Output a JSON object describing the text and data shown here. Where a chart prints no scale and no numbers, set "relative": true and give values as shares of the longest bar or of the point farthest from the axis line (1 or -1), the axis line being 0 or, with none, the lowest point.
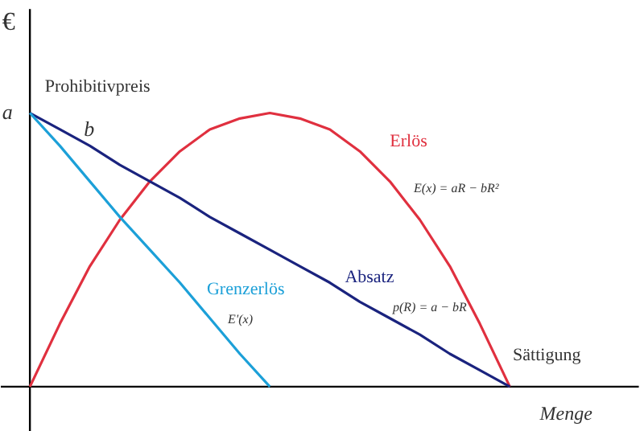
{
  "chart_data": {
    "type": "line",
    "relative": true,
    "ylabel": "€",
    "xlabel": "Menge",
    "grid": false,
    "marker": "none",
    "line_style": "solid",
    "categories": [
      null,
      null,
      null,
      null,
      null,
      null,
      null,
      null,
      null,
      null,
      null,
      null,
      null,
      null,
      null,
      null,
      null
    ],
    "series": [
      {
        "name": "Erlös",
        "color": "#e0303f",
        "values": [
          0,
          0.23,
          0.44,
          0.61,
          0.75,
          0.86,
          0.94,
          0.98,
          1,
          0.98,
          0.94,
          0.86,
          0.75,
          0.61,
          0.44,
          0.23,
          0
        ]
      },
      {
        "name": "Absatz",
        "color": "#1a237e",
        "values": [
          1,
          0.94,
          0.88,
          0.81,
          0.75,
          0.69,
          0.62,
          0.56,
          0.5,
          0.44,
          0.38,
          0.31,
          0.25,
          0.19,
          0.12,
          0.06,
          0
        ]
      },
      {
        "name": "Grenzerlös",
        "color": "#1ca0d8",
        "values": [
          1,
          0.88,
          0.75,
          0.62,
          0.5,
          0.38,
          0.25,
          0.12,
          0,
          null,
          null,
          null,
          null,
          null,
          null,
          null,
          null
        ]
      }
    ],
    "annotations": [
      "a",
      "Prohibitivpreis",
      "b",
      "E(x) = aR − bR²",
      "p(R) = a − bR",
      "E'(x)",
      "Sättigung"
    ]
  }
}
